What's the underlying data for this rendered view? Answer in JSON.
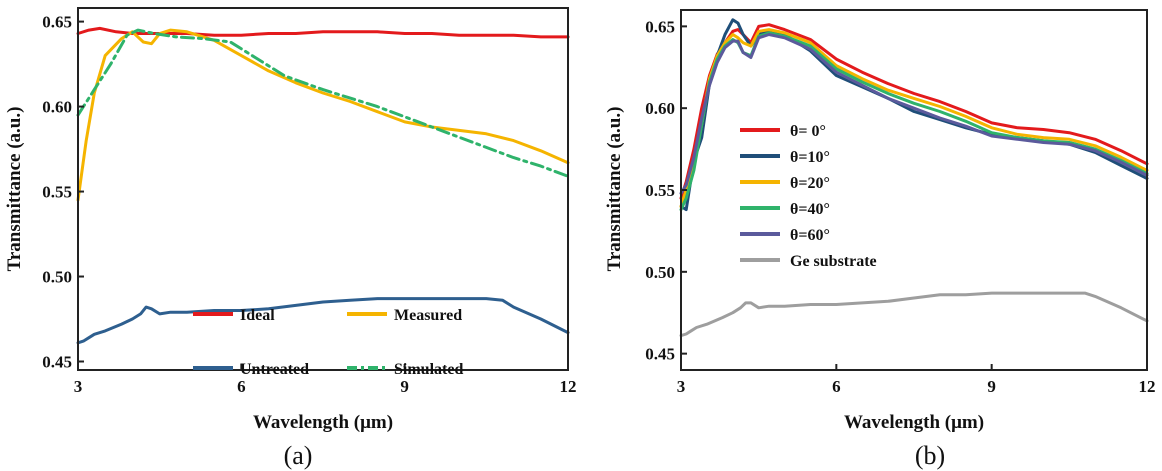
{
  "chart_data": [
    {
      "type": "line",
      "panel_label": "(a)",
      "xlabel": "Wavelength (μm)",
      "ylabel": "Transmittance (a.u.)",
      "xlim": [
        3,
        12
      ],
      "ylim": [
        0.445,
        0.658
      ],
      "xticks": [
        3,
        6,
        9,
        12
      ],
      "xtick_labels": [
        "3",
        "6",
        "9",
        "12"
      ],
      "yticks": [
        0.45,
        0.5,
        0.55,
        0.6,
        0.65
      ],
      "ytick_labels": [
        "0.45",
        "0.50",
        "0.55",
        "0.60",
        "0.65"
      ],
      "legend_columns": 2,
      "series": [
        {
          "name": "Ideal",
          "color": "#e31a1c",
          "dash": "solid",
          "x": [
            3,
            3.2,
            3.4,
            3.7,
            4,
            4.5,
            5,
            5.5,
            6,
            6.5,
            7,
            7.5,
            8,
            8.5,
            9,
            9.5,
            10,
            10.5,
            11,
            11.5,
            12
          ],
          "y": [
            0.643,
            0.645,
            0.646,
            0.644,
            0.643,
            0.643,
            0.643,
            0.642,
            0.642,
            0.643,
            0.643,
            0.644,
            0.644,
            0.644,
            0.643,
            0.643,
            0.642,
            0.642,
            0.642,
            0.641,
            0.641
          ]
        },
        {
          "name": "Untreated",
          "color": "#2e5f8f",
          "dash": "solid",
          "x": [
            3,
            3.1,
            3.2,
            3.3,
            3.5,
            3.8,
            4.0,
            4.15,
            4.25,
            4.35,
            4.5,
            4.7,
            5,
            5.5,
            6,
            6.5,
            7,
            7.5,
            8,
            8.5,
            9,
            9.5,
            10,
            10.5,
            10.8,
            11,
            11.5,
            12
          ],
          "y": [
            0.461,
            0.462,
            0.464,
            0.466,
            0.468,
            0.472,
            0.475,
            0.478,
            0.482,
            0.481,
            0.478,
            0.479,
            0.479,
            0.48,
            0.48,
            0.481,
            0.483,
            0.485,
            0.486,
            0.487,
            0.487,
            0.487,
            0.487,
            0.487,
            0.486,
            0.482,
            0.475,
            0.467
          ]
        },
        {
          "name": "Measured",
          "color": "#f5b400",
          "dash": "solid",
          "x": [
            3,
            3.15,
            3.3,
            3.5,
            3.8,
            4.0,
            4.2,
            4.35,
            4.5,
            4.7,
            5,
            5.5,
            6,
            6.5,
            7,
            7.5,
            8,
            8.5,
            9,
            9.5,
            10,
            10.5,
            11,
            11.5,
            12
          ],
          "y": [
            0.545,
            0.58,
            0.608,
            0.63,
            0.64,
            0.644,
            0.638,
            0.637,
            0.643,
            0.645,
            0.644,
            0.639,
            0.63,
            0.621,
            0.614,
            0.608,
            0.603,
            0.597,
            0.591,
            0.588,
            0.586,
            0.584,
            0.58,
            0.574,
            0.567
          ]
        },
        {
          "name": "Simulated",
          "color": "#2fb36b",
          "dash": "dashdot",
          "x": [
            3,
            3.3,
            3.6,
            3.9,
            4.1,
            4.4,
            4.8,
            5.3,
            5.8,
            6.2,
            6.8,
            7.5,
            8,
            8.5,
            9,
            9.5,
            10,
            10.5,
            11,
            11.5,
            12
          ],
          "y": [
            0.595,
            0.61,
            0.625,
            0.642,
            0.645,
            0.643,
            0.641,
            0.64,
            0.638,
            0.63,
            0.618,
            0.61,
            0.605,
            0.6,
            0.594,
            0.588,
            0.582,
            0.576,
            0.57,
            0.565,
            0.559
          ]
        }
      ]
    },
    {
      "type": "line",
      "panel_label": "(b)",
      "xlabel": "Wavelength (μm)",
      "ylabel": "Transmittance (a.u.)",
      "xlim": [
        3,
        12
      ],
      "ylim": [
        0.44,
        0.66
      ],
      "xticks": [
        3,
        6,
        9,
        12
      ],
      "xtick_labels": [
        "3",
        "6",
        "9",
        "12"
      ],
      "yticks": [
        0.45,
        0.5,
        0.55,
        0.6,
        0.65
      ],
      "ytick_labels": [
        "0.45",
        "0.50",
        "0.55",
        "0.60",
        "0.65"
      ],
      "legend_columns": 1,
      "series": [
        {
          "name": "θ= 0°",
          "color": "#e31a1c",
          "dash": "solid",
          "x": [
            3,
            3.1,
            3.25,
            3.4,
            3.55,
            3.7,
            3.85,
            4.0,
            4.1,
            4.2,
            4.35,
            4.5,
            4.7,
            5,
            5.5,
            6,
            6.5,
            7,
            7.5,
            8,
            8.5,
            9,
            9.5,
            10,
            10.5,
            11,
            11.5,
            12
          ],
          "y": [
            0.545,
            0.555,
            0.575,
            0.6,
            0.62,
            0.633,
            0.64,
            0.647,
            0.648,
            0.645,
            0.64,
            0.65,
            0.651,
            0.648,
            0.642,
            0.63,
            0.622,
            0.615,
            0.609,
            0.604,
            0.598,
            0.591,
            0.588,
            0.587,
            0.585,
            0.581,
            0.574,
            0.566
          ]
        },
        {
          "name": "θ=10°",
          "color": "#1f4e79",
          "dash": "solid",
          "x": [
            3,
            3.1,
            3.25,
            3.4,
            3.55,
            3.7,
            3.85,
            4.0,
            4.1,
            4.2,
            4.35,
            4.5,
            4.7,
            5,
            5.5,
            6,
            6.5,
            7,
            7.5,
            8,
            8.5,
            9,
            9.5,
            10,
            10.5,
            11,
            11.5,
            12
          ],
          "y": [
            0.54,
            0.538,
            0.568,
            0.582,
            0.615,
            0.632,
            0.645,
            0.654,
            0.652,
            0.645,
            0.638,
            0.645,
            0.647,
            0.645,
            0.635,
            0.62,
            0.613,
            0.606,
            0.598,
            0.593,
            0.588,
            0.584,
            0.582,
            0.58,
            0.578,
            0.573,
            0.565,
            0.557
          ]
        },
        {
          "name": "θ=20°",
          "color": "#f5b400",
          "dash": "solid",
          "x": [
            3,
            3.1,
            3.25,
            3.4,
            3.55,
            3.7,
            3.85,
            4.0,
            4.1,
            4.2,
            4.35,
            4.5,
            4.7,
            5,
            5.5,
            6,
            6.5,
            7,
            7.5,
            8,
            8.5,
            9,
            9.5,
            10,
            10.5,
            11,
            11.5,
            12
          ],
          "y": [
            0.54,
            0.55,
            0.566,
            0.59,
            0.618,
            0.632,
            0.64,
            0.645,
            0.643,
            0.64,
            0.638,
            0.647,
            0.648,
            0.646,
            0.64,
            0.626,
            0.618,
            0.611,
            0.606,
            0.601,
            0.595,
            0.588,
            0.584,
            0.582,
            0.581,
            0.577,
            0.57,
            0.562
          ]
        },
        {
          "name": "θ=40°",
          "color": "#2fb36b",
          "dash": "solid",
          "x": [
            3,
            3.1,
            3.25,
            3.4,
            3.55,
            3.7,
            3.85,
            4.0,
            4.1,
            4.2,
            4.35,
            4.5,
            4.7,
            5,
            5.5,
            6,
            6.5,
            7,
            7.5,
            8,
            8.5,
            9,
            9.5,
            10,
            10.5,
            11,
            11.5,
            12
          ],
          "y": [
            0.538,
            0.545,
            0.562,
            0.59,
            0.616,
            0.63,
            0.638,
            0.642,
            0.64,
            0.634,
            0.632,
            0.644,
            0.646,
            0.644,
            0.638,
            0.624,
            0.616,
            0.609,
            0.603,
            0.598,
            0.592,
            0.585,
            0.582,
            0.58,
            0.579,
            0.575,
            0.568,
            0.56
          ]
        },
        {
          "name": "θ=60°",
          "color": "#5b5a9c",
          "dash": "solid",
          "x": [
            3,
            3.1,
            3.25,
            3.4,
            3.55,
            3.7,
            3.85,
            4.0,
            4.1,
            4.2,
            4.35,
            4.5,
            4.7,
            5,
            5.5,
            6,
            6.5,
            7,
            7.5,
            8,
            8.5,
            9,
            9.5,
            10,
            10.5,
            11,
            11.5,
            12
          ],
          "y": [
            0.548,
            0.553,
            0.57,
            0.594,
            0.614,
            0.628,
            0.637,
            0.641,
            0.641,
            0.634,
            0.631,
            0.643,
            0.645,
            0.643,
            0.636,
            0.622,
            0.614,
            0.606,
            0.6,
            0.594,
            0.589,
            0.583,
            0.581,
            0.579,
            0.578,
            0.574,
            0.567,
            0.559
          ]
        },
        {
          "name": "Ge substrate",
          "color": "#9e9e9e",
          "dash": "solid",
          "x": [
            3,
            3.1,
            3.2,
            3.3,
            3.5,
            3.8,
            4.0,
            4.15,
            4.25,
            4.35,
            4.5,
            4.7,
            5,
            5.5,
            6,
            6.5,
            7,
            7.5,
            8,
            8.5,
            9,
            9.5,
            10,
            10.5,
            10.8,
            11,
            11.5,
            12
          ],
          "y": [
            0.461,
            0.462,
            0.464,
            0.466,
            0.468,
            0.472,
            0.475,
            0.478,
            0.481,
            0.481,
            0.478,
            0.479,
            0.479,
            0.48,
            0.48,
            0.481,
            0.482,
            0.484,
            0.486,
            0.486,
            0.487,
            0.487,
            0.487,
            0.487,
            0.487,
            0.485,
            0.478,
            0.47
          ]
        }
      ]
    }
  ]
}
